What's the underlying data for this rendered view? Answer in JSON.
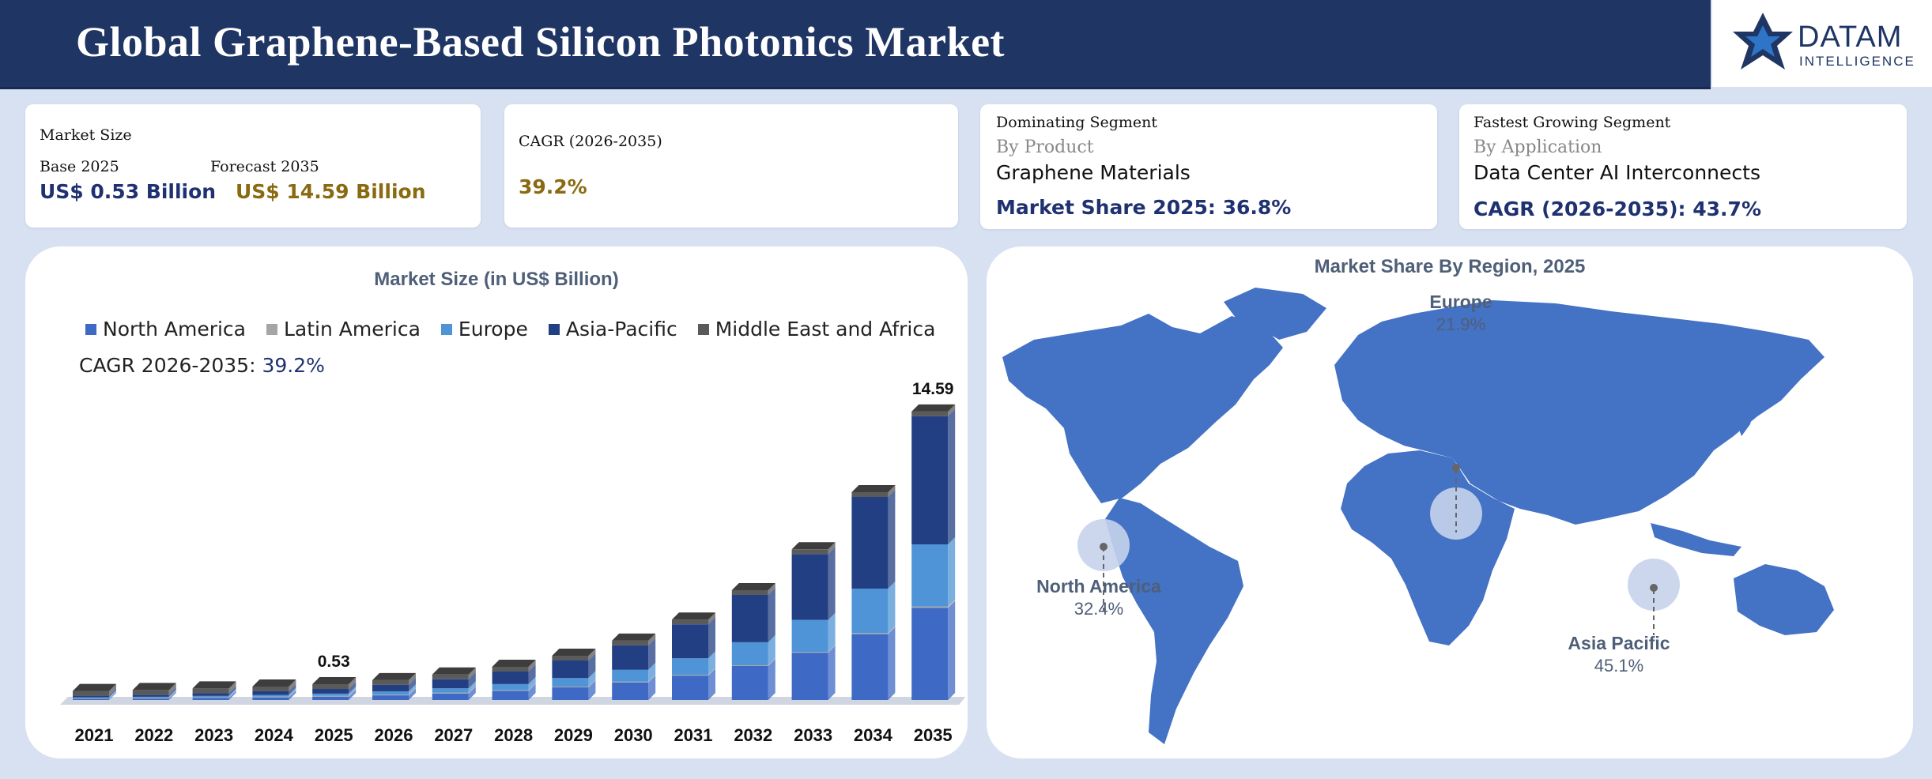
{
  "header": {
    "title": "Global Graphene-Based Silicon Photonics Market"
  },
  "logo": {
    "line1": "DATAM",
    "line2": "INTELLIGENCE"
  },
  "cards": {
    "market_size": {
      "heading": "Market Size",
      "base_label": "Base 2025",
      "base_value": "US$ 0.53 Billion",
      "forecast_label": "Forecast 2035",
      "forecast_value": "US$ 14.59 Billion"
    },
    "cagr": {
      "heading": "CAGR (2026-2035)",
      "value": "39.2%"
    },
    "dominating": {
      "heading": "Dominating Segment",
      "by": "By Product",
      "name": "Graphene Materials",
      "share": "Market Share 2025: 36.8%"
    },
    "fastest": {
      "heading": "Fastest Growing Segment",
      "by": "By Application",
      "name": "Data Center AI Interconnects",
      "cagr": "CAGR (2026-2035): 43.7%"
    }
  },
  "colors": {
    "north_america": "#3e69c4",
    "latin_america": "#a5a5a5",
    "europe": "#4f94d6",
    "asia_pacific": "#213f82",
    "mea": "#5a5a5a",
    "map_fill": "#4472c4"
  },
  "chart_data": [
    {
      "type": "bar",
      "title": "Market Size (in US$ Billion)",
      "cagr_label": "CAGR 2026-2035:",
      "cagr_value": "39.2%",
      "categories": [
        "2021",
        "2022",
        "2023",
        "2024",
        "2025",
        "2026",
        "2027",
        "2028",
        "2029",
        "2030",
        "2031",
        "2032",
        "2033",
        "2034",
        "2035"
      ],
      "totals": [
        0.18,
        0.23,
        0.31,
        0.41,
        0.53,
        0.74,
        1.03,
        1.43,
        2.0,
        2.78,
        3.87,
        5.39,
        7.5,
        10.44,
        14.59
      ],
      "series": [
        {
          "name": "North America",
          "share": 0.324
        },
        {
          "name": "Latin America",
          "share": 0.005
        },
        {
          "name": "Europe",
          "share": 0.219
        },
        {
          "name": "Asia-Pacific",
          "share": 0.451
        },
        {
          "name": "Middle East and Africa",
          "share": 0.001
        }
      ],
      "data_labels": [
        {
          "category": "2025",
          "text": "0.53"
        },
        {
          "category": "2035",
          "text": "14.59"
        }
      ],
      "stacked": true,
      "ylim": [
        0,
        15
      ]
    },
    {
      "type": "map",
      "title": "Market Share By Region, 2025",
      "regions": [
        {
          "name": "North America",
          "value": "32.4%"
        },
        {
          "name": "Europe",
          "value": "21.9%"
        },
        {
          "name": "Asia Pacific",
          "value": "45.1%"
        }
      ]
    }
  ]
}
